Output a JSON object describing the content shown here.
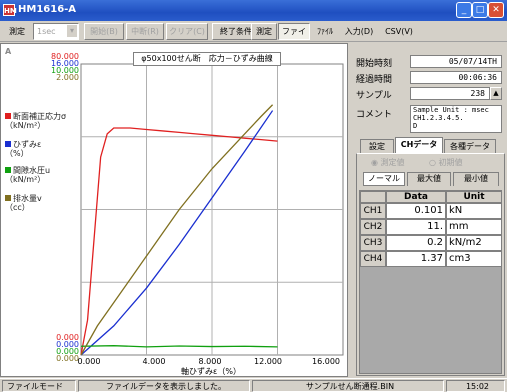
{
  "window": {
    "title": "HM1616-A",
    "icon_label": "HM"
  },
  "toolbar": {
    "measure_label": "測定",
    "interval_value": "1sec",
    "start": "開始(B)",
    "pause": "中断(R)",
    "clear": "クリア(C)",
    "end_condition": "終了条件",
    "measure2": "測定",
    "file": "ファイル",
    "file2": "ﾌｧｲﾙ",
    "input": "入力(D)",
    "csv": "CSV(V)"
  },
  "plot": {
    "corner_label": "A",
    "title": "φ50x100せん断　応力－ひずみ曲線",
    "legend": [
      {
        "label": "断面補正応力σ\n（kN/m²）",
        "color": "#e02020"
      },
      {
        "label": "ひずみε\n（%）",
        "color": "#1a2fd0"
      },
      {
        "label": "間隙水圧u\n（kN/m²）",
        "color": "#10a010"
      },
      {
        "label": "排水量v\n（cc）",
        "color": "#807020"
      }
    ],
    "ytop": [
      "80.000",
      "16.000",
      "10.000",
      "2.000"
    ],
    "ybottom": [
      "0.000",
      "0.000",
      "0.000",
      "0.000"
    ],
    "xticks": [
      "0.000",
      "4.000",
      "8.000",
      "12.000",
      "16.000"
    ],
    "xlabel": "軸ひずみε（%）"
  },
  "chart_data": {
    "type": "line",
    "title": "φ50x100せん断　応力－ひずみ曲線",
    "xlabel": "軸ひずみε（%）",
    "xlim": [
      0,
      16
    ],
    "ylim": [
      0,
      1
    ],
    "grid": true,
    "series": [
      {
        "name": "断面補正応力σ",
        "x": [
          0,
          0.4,
          0.8,
          1.2,
          1.6,
          2,
          3,
          4,
          5,
          6,
          7,
          8,
          9,
          10,
          11,
          12
        ],
        "y": [
          0,
          0.12,
          0.4,
          0.68,
          0.76,
          0.78,
          0.78,
          0.775,
          0.77,
          0.765,
          0.76,
          0.755,
          0.75,
          0.745,
          0.74,
          0.735
        ]
      },
      {
        "name": "ひずみε",
        "x": [
          0,
          2,
          4,
          6,
          8,
          10,
          11.7
        ],
        "y": [
          0,
          0.1,
          0.23,
          0.38,
          0.54,
          0.7,
          0.84
        ]
      },
      {
        "name": "間隙水圧u",
        "x": [
          0,
          2,
          4,
          6,
          8,
          10,
          12
        ],
        "y": [
          0.03,
          0.032,
          0.028,
          0.031,
          0.029,
          0.03,
          0.028
        ]
      },
      {
        "name": "排水量v",
        "x": [
          0,
          1,
          2,
          3,
          4,
          5,
          6,
          7,
          8,
          9,
          10,
          11,
          11.7
        ],
        "y": [
          0,
          0.1,
          0.18,
          0.26,
          0.34,
          0.42,
          0.5,
          0.57,
          0.64,
          0.7,
          0.76,
          0.82,
          0.86
        ]
      }
    ]
  },
  "info": {
    "start_label": "開始時刻",
    "start_value": "05/07/14TH",
    "elapsed_label": "経過時間",
    "elapsed_value": "00:06:36",
    "sample_label": "サンプル",
    "sample_value": "238",
    "comment_label": "コメント",
    "comment_value": "Sample Unit : msec\nCH1.2.3.4.5.\nD"
  },
  "tabs": {
    "settings": "設定",
    "ch_data": "CHデータ",
    "misc": "各種データ"
  },
  "radios": {
    "measured": "測定値",
    "initial": "初期値"
  },
  "subtabs": {
    "normal": "ノーマル",
    "max": "最大値",
    "min": "最小値"
  },
  "table": {
    "headers": [
      "Data",
      "Unit"
    ],
    "rows": [
      {
        "ch": "CH1",
        "value": "0.101",
        "unit": "kN"
      },
      {
        "ch": "CH2",
        "value": "11.",
        "unit": "mm"
      },
      {
        "ch": "CH3",
        "value": "0.2",
        "unit": "kN/m2"
      },
      {
        "ch": "CH4",
        "value": "1.37",
        "unit": "cm3"
      }
    ]
  },
  "status": {
    "mode": "ファイルモード",
    "message": "ファイルデータを表示しました。",
    "filename": "サンプルせん断通程.BIN",
    "time": "15:02"
  }
}
